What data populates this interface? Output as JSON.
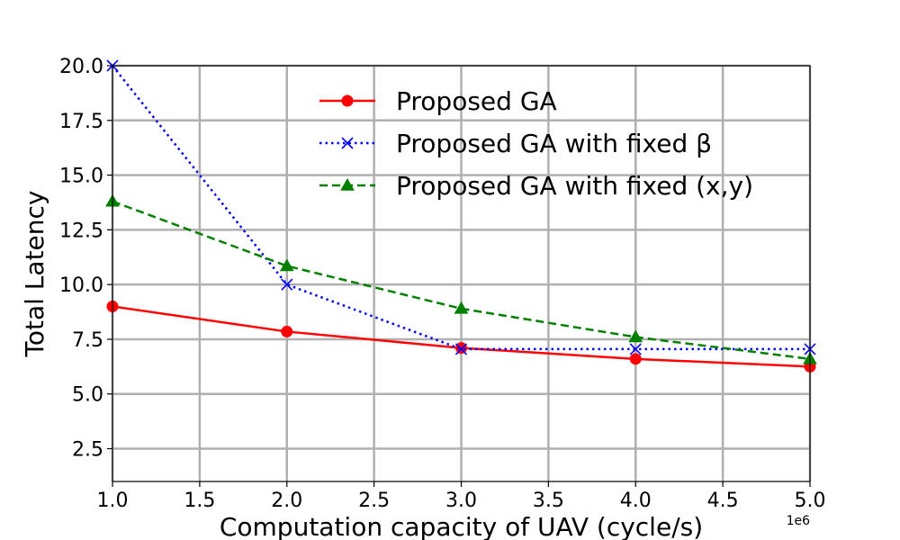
{
  "chart_data": {
    "type": "line",
    "x": [
      1000000,
      2000000,
      3000000,
      4000000,
      5000000
    ],
    "series": [
      {
        "name": "Proposed GA",
        "values": [
          9.0,
          7.85,
          7.1,
          6.6,
          6.25
        ],
        "color": "#ff0000",
        "linestyle": "solid",
        "marker": "circle"
      },
      {
        "name": "Proposed GA with fixed β",
        "values": [
          20.0,
          10.0,
          7.05,
          7.05,
          7.05
        ],
        "color": "#0000ff",
        "linestyle": "dotted",
        "marker": "x"
      },
      {
        "name": "Proposed GA with fixed (x,y)",
        "values": [
          13.8,
          10.85,
          8.9,
          7.6,
          6.6
        ],
        "color": "#008000",
        "linestyle": "dashed",
        "marker": "triangle"
      }
    ],
    "xlabel": "Computation capacity of UAV (cycle/s)",
    "ylabel": "Total Latency",
    "xlim": [
      1000000,
      5000000
    ],
    "ylim": [
      1.0,
      20.0
    ],
    "x_offset_label": "1e6",
    "x_tick_labels": [
      "1.0",
      "1.5",
      "2.0",
      "2.5",
      "3.0",
      "3.5",
      "4.0",
      "4.5",
      "5.0"
    ],
    "y_tick_labels": [
      "2.5",
      "5.0",
      "7.5",
      "10.0",
      "12.5",
      "15.0",
      "17.5",
      "20.0"
    ],
    "x_ticks": [
      1000000,
      1500000,
      2000000,
      2500000,
      3000000,
      3500000,
      4000000,
      4500000,
      5000000
    ],
    "y_ticks": [
      2.5,
      5.0,
      7.5,
      10.0,
      12.5,
      15.0,
      17.5,
      20.0
    ],
    "grid": true,
    "legend_position": "top-right",
    "grid_color": "#b0b0b0"
  }
}
